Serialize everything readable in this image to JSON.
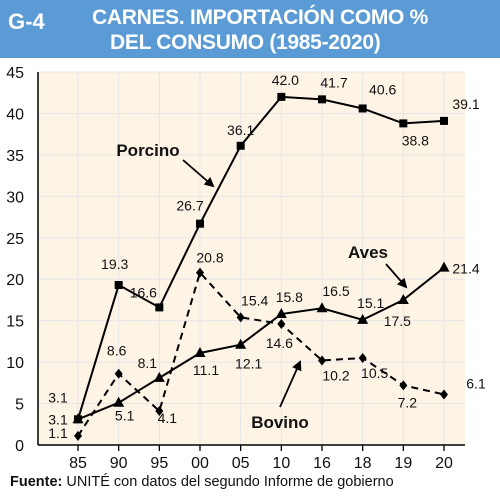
{
  "header": {
    "code": "G-4",
    "title_line1": "CARNES. IMPORTACIÓN COMO %",
    "title_line2": "DEL CONSUMO (1985-2020)",
    "background": "#5b9bd5"
  },
  "footer": {
    "label": "Fuente:",
    "text": "UNITÉ con datos del segundo Informe de gobierno"
  },
  "chart_data": {
    "type": "line",
    "categories": [
      "85",
      "90",
      "95",
      "00",
      "05",
      "10",
      "16",
      "18",
      "19",
      "20"
    ],
    "ylim": [
      0,
      45
    ],
    "yticks": [
      "0",
      "5",
      "10",
      "15",
      "20",
      "25",
      "30",
      "35",
      "40",
      "45"
    ],
    "grid": true,
    "plot_background": "#fdf4e6",
    "grid_color": "#e6e6e6",
    "series": [
      {
        "name": "Porcino",
        "marker": "square",
        "dash": "solid",
        "values": [
          3.1,
          19.3,
          16.6,
          26.7,
          36.1,
          42.0,
          41.7,
          40.6,
          38.8,
          39.1
        ],
        "labels": [
          "3.1",
          "19.3",
          "16.6",
          "26.7",
          "36.1",
          "42.0",
          "41.7",
          "40.6",
          "38.8",
          "39.1"
        ]
      },
      {
        "name": "Aves",
        "marker": "triangle",
        "dash": "solid",
        "values": [
          3.1,
          5.1,
          8.1,
          11.1,
          12.1,
          15.8,
          16.5,
          15.1,
          17.5,
          21.4
        ],
        "labels": [
          "3.1",
          "5.1",
          "8.1",
          "11.1",
          "12.1",
          "15.8",
          "16.5",
          "15.1",
          "17.5",
          "21.4"
        ]
      },
      {
        "name": "Bovino",
        "marker": "diamond",
        "dash": "dashed",
        "values": [
          1.1,
          8.6,
          4.1,
          20.8,
          15.4,
          14.6,
          10.2,
          10.5,
          7.2,
          6.1
        ],
        "labels": [
          "1.1",
          "8.6",
          "4.1",
          "20.8",
          "15.4",
          "14.6",
          "10.2",
          "10.5",
          "7.2",
          "6.1"
        ]
      }
    ]
  }
}
